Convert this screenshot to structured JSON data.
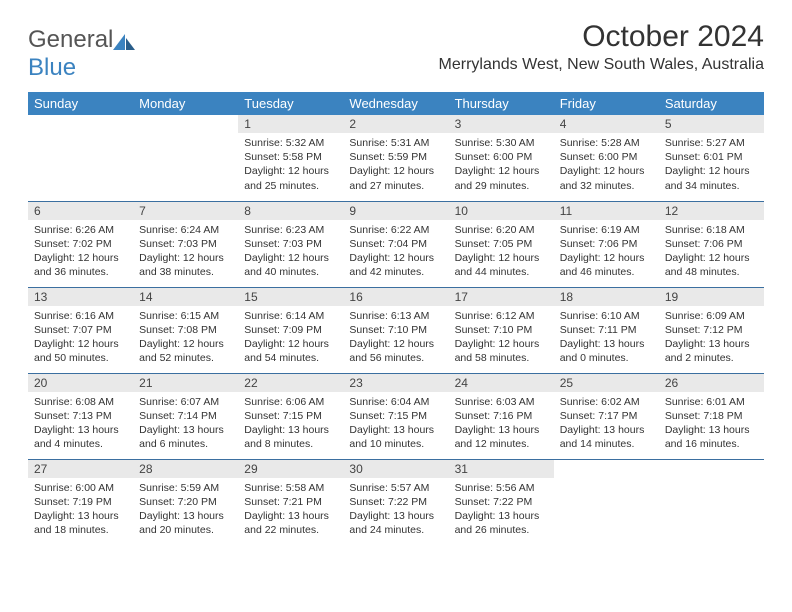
{
  "logo": {
    "word1": "General",
    "word2": "Blue"
  },
  "title": "October 2024",
  "location": "Merrylands West, New South Wales, Australia",
  "colors": {
    "header_bg": "#3b83c0",
    "header_text": "#ffffff",
    "daynum_bg": "#e9e9e9",
    "row_border": "#3b6fa0",
    "logo_blue": "#3b83c0"
  },
  "day_headers": [
    "Sunday",
    "Monday",
    "Tuesday",
    "Wednesday",
    "Thursday",
    "Friday",
    "Saturday"
  ],
  "weeks": [
    [
      null,
      null,
      {
        "n": "1",
        "sr": "Sunrise: 5:32 AM",
        "ss": "Sunset: 5:58 PM",
        "dl": "Daylight: 12 hours and 25 minutes."
      },
      {
        "n": "2",
        "sr": "Sunrise: 5:31 AM",
        "ss": "Sunset: 5:59 PM",
        "dl": "Daylight: 12 hours and 27 minutes."
      },
      {
        "n": "3",
        "sr": "Sunrise: 5:30 AM",
        "ss": "Sunset: 6:00 PM",
        "dl": "Daylight: 12 hours and 29 minutes."
      },
      {
        "n": "4",
        "sr": "Sunrise: 5:28 AM",
        "ss": "Sunset: 6:00 PM",
        "dl": "Daylight: 12 hours and 32 minutes."
      },
      {
        "n": "5",
        "sr": "Sunrise: 5:27 AM",
        "ss": "Sunset: 6:01 PM",
        "dl": "Daylight: 12 hours and 34 minutes."
      }
    ],
    [
      {
        "n": "6",
        "sr": "Sunrise: 6:26 AM",
        "ss": "Sunset: 7:02 PM",
        "dl": "Daylight: 12 hours and 36 minutes."
      },
      {
        "n": "7",
        "sr": "Sunrise: 6:24 AM",
        "ss": "Sunset: 7:03 PM",
        "dl": "Daylight: 12 hours and 38 minutes."
      },
      {
        "n": "8",
        "sr": "Sunrise: 6:23 AM",
        "ss": "Sunset: 7:03 PM",
        "dl": "Daylight: 12 hours and 40 minutes."
      },
      {
        "n": "9",
        "sr": "Sunrise: 6:22 AM",
        "ss": "Sunset: 7:04 PM",
        "dl": "Daylight: 12 hours and 42 minutes."
      },
      {
        "n": "10",
        "sr": "Sunrise: 6:20 AM",
        "ss": "Sunset: 7:05 PM",
        "dl": "Daylight: 12 hours and 44 minutes."
      },
      {
        "n": "11",
        "sr": "Sunrise: 6:19 AM",
        "ss": "Sunset: 7:06 PM",
        "dl": "Daylight: 12 hours and 46 minutes."
      },
      {
        "n": "12",
        "sr": "Sunrise: 6:18 AM",
        "ss": "Sunset: 7:06 PM",
        "dl": "Daylight: 12 hours and 48 minutes."
      }
    ],
    [
      {
        "n": "13",
        "sr": "Sunrise: 6:16 AM",
        "ss": "Sunset: 7:07 PM",
        "dl": "Daylight: 12 hours and 50 minutes."
      },
      {
        "n": "14",
        "sr": "Sunrise: 6:15 AM",
        "ss": "Sunset: 7:08 PM",
        "dl": "Daylight: 12 hours and 52 minutes."
      },
      {
        "n": "15",
        "sr": "Sunrise: 6:14 AM",
        "ss": "Sunset: 7:09 PM",
        "dl": "Daylight: 12 hours and 54 minutes."
      },
      {
        "n": "16",
        "sr": "Sunrise: 6:13 AM",
        "ss": "Sunset: 7:10 PM",
        "dl": "Daylight: 12 hours and 56 minutes."
      },
      {
        "n": "17",
        "sr": "Sunrise: 6:12 AM",
        "ss": "Sunset: 7:10 PM",
        "dl": "Daylight: 12 hours and 58 minutes."
      },
      {
        "n": "18",
        "sr": "Sunrise: 6:10 AM",
        "ss": "Sunset: 7:11 PM",
        "dl": "Daylight: 13 hours and 0 minutes."
      },
      {
        "n": "19",
        "sr": "Sunrise: 6:09 AM",
        "ss": "Sunset: 7:12 PM",
        "dl": "Daylight: 13 hours and 2 minutes."
      }
    ],
    [
      {
        "n": "20",
        "sr": "Sunrise: 6:08 AM",
        "ss": "Sunset: 7:13 PM",
        "dl": "Daylight: 13 hours and 4 minutes."
      },
      {
        "n": "21",
        "sr": "Sunrise: 6:07 AM",
        "ss": "Sunset: 7:14 PM",
        "dl": "Daylight: 13 hours and 6 minutes."
      },
      {
        "n": "22",
        "sr": "Sunrise: 6:06 AM",
        "ss": "Sunset: 7:15 PM",
        "dl": "Daylight: 13 hours and 8 minutes."
      },
      {
        "n": "23",
        "sr": "Sunrise: 6:04 AM",
        "ss": "Sunset: 7:15 PM",
        "dl": "Daylight: 13 hours and 10 minutes."
      },
      {
        "n": "24",
        "sr": "Sunrise: 6:03 AM",
        "ss": "Sunset: 7:16 PM",
        "dl": "Daylight: 13 hours and 12 minutes."
      },
      {
        "n": "25",
        "sr": "Sunrise: 6:02 AM",
        "ss": "Sunset: 7:17 PM",
        "dl": "Daylight: 13 hours and 14 minutes."
      },
      {
        "n": "26",
        "sr": "Sunrise: 6:01 AM",
        "ss": "Sunset: 7:18 PM",
        "dl": "Daylight: 13 hours and 16 minutes."
      }
    ],
    [
      {
        "n": "27",
        "sr": "Sunrise: 6:00 AM",
        "ss": "Sunset: 7:19 PM",
        "dl": "Daylight: 13 hours and 18 minutes."
      },
      {
        "n": "28",
        "sr": "Sunrise: 5:59 AM",
        "ss": "Sunset: 7:20 PM",
        "dl": "Daylight: 13 hours and 20 minutes."
      },
      {
        "n": "29",
        "sr": "Sunrise: 5:58 AM",
        "ss": "Sunset: 7:21 PM",
        "dl": "Daylight: 13 hours and 22 minutes."
      },
      {
        "n": "30",
        "sr": "Sunrise: 5:57 AM",
        "ss": "Sunset: 7:22 PM",
        "dl": "Daylight: 13 hours and 24 minutes."
      },
      {
        "n": "31",
        "sr": "Sunrise: 5:56 AM",
        "ss": "Sunset: 7:22 PM",
        "dl": "Daylight: 13 hours and 26 minutes."
      },
      null,
      null
    ]
  ]
}
